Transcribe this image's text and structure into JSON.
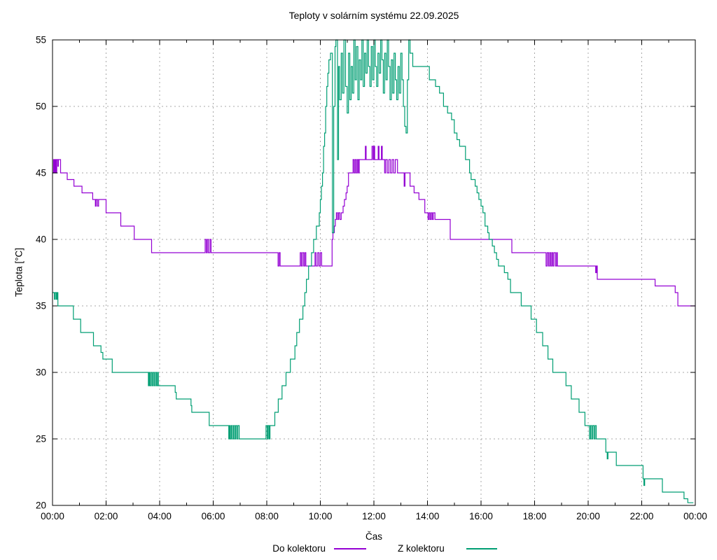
{
  "title": "Teploty v solárním systému 22.09.2025",
  "axes": {
    "x_label": "Čas",
    "y_label": "Teplota [°C]",
    "x_tick_labels": [
      "00:00",
      "02:00",
      "04:00",
      "06:00",
      "08:00",
      "10:00",
      "12:00",
      "14:00",
      "16:00",
      "18:00",
      "20:00",
      "22:00",
      "00:00"
    ],
    "y_tick_labels": [
      "20",
      "25",
      "30",
      "35",
      "40",
      "45",
      "50",
      "55"
    ]
  },
  "legend": {
    "position": "bottom-center",
    "items": [
      {
        "label": "Do kolektoru",
        "color": "#9400d3"
      },
      {
        "label": "Z kolektoru",
        "color": "#009e73"
      }
    ]
  },
  "chart_data": {
    "type": "line",
    "style": "steps",
    "title": "Teploty v solárním systému 22.09.2025",
    "xlabel": "Čas",
    "ylabel": "Teplota [°C]",
    "x_unit": "hours",
    "xlim": [
      0,
      24
    ],
    "ylim": [
      20,
      55
    ],
    "grid": true,
    "x_major_tick_hours": 2,
    "x_minor_tick_hours": 1,
    "y_major_tick": 5,
    "series": [
      {
        "name": "Do kolektoru",
        "color": "#9400d3",
        "points": [
          [
            0,
            45
          ],
          [
            0.04,
            46
          ],
          [
            0.07,
            45
          ],
          [
            0.1,
            46
          ],
          [
            0.13,
            45
          ],
          [
            0.16,
            46
          ],
          [
            0.2,
            45.5
          ],
          [
            0.22,
            46
          ],
          [
            0.3,
            45
          ],
          [
            0.55,
            44.5
          ],
          [
            0.8,
            44
          ],
          [
            1.1,
            43.5
          ],
          [
            1.5,
            43
          ],
          [
            1.6,
            42.5
          ],
          [
            1.63,
            43
          ],
          [
            1.68,
            42.5
          ],
          [
            1.72,
            43
          ],
          [
            2.0,
            42
          ],
          [
            2.55,
            41
          ],
          [
            3.05,
            40
          ],
          [
            3.7,
            39
          ],
          [
            5.7,
            40
          ],
          [
            5.74,
            39
          ],
          [
            5.78,
            40
          ],
          [
            5.82,
            39
          ],
          [
            5.88,
            40
          ],
          [
            5.92,
            39
          ],
          [
            8.42,
            38
          ],
          [
            8.46,
            39
          ],
          [
            8.5,
            38
          ],
          [
            9.25,
            39
          ],
          [
            9.29,
            38
          ],
          [
            9.33,
            39
          ],
          [
            9.38,
            38
          ],
          [
            9.42,
            39
          ],
          [
            9.46,
            38
          ],
          [
            9.8,
            39
          ],
          [
            9.84,
            38
          ],
          [
            9.9,
            39
          ],
          [
            9.95,
            38
          ],
          [
            10.0,
            39
          ],
          [
            10.05,
            38
          ],
          [
            10.44,
            40
          ],
          [
            10.47,
            40.5
          ],
          [
            10.52,
            41
          ],
          [
            10.56,
            41.5
          ],
          [
            10.6,
            42
          ],
          [
            10.64,
            41.5
          ],
          [
            10.68,
            42
          ],
          [
            10.73,
            41.5
          ],
          [
            10.78,
            42
          ],
          [
            10.85,
            42.5
          ],
          [
            10.9,
            43
          ],
          [
            10.96,
            43.5
          ],
          [
            11.0,
            44
          ],
          [
            11.05,
            45
          ],
          [
            11.22,
            46
          ],
          [
            11.26,
            45
          ],
          [
            11.3,
            46
          ],
          [
            11.34,
            45
          ],
          [
            11.38,
            46
          ],
          [
            11.42,
            45
          ],
          [
            11.45,
            46
          ],
          [
            11.68,
            47
          ],
          [
            11.71,
            46
          ],
          [
            11.93,
            47
          ],
          [
            11.97,
            46
          ],
          [
            12.0,
            47
          ],
          [
            12.03,
            46
          ],
          [
            12.16,
            47
          ],
          [
            12.19,
            46
          ],
          [
            12.28,
            47
          ],
          [
            12.31,
            46
          ],
          [
            12.4,
            45
          ],
          [
            12.44,
            46
          ],
          [
            12.5,
            45
          ],
          [
            12.56,
            46
          ],
          [
            12.62,
            45
          ],
          [
            12.68,
            46
          ],
          [
            12.74,
            45
          ],
          [
            12.8,
            46
          ],
          [
            12.88,
            45
          ],
          [
            13.13,
            44
          ],
          [
            13.16,
            45
          ],
          [
            13.35,
            44
          ],
          [
            13.5,
            43.5
          ],
          [
            13.68,
            43
          ],
          [
            13.9,
            42
          ],
          [
            14.02,
            41.5
          ],
          [
            14.06,
            42
          ],
          [
            14.1,
            41.5
          ],
          [
            14.14,
            42
          ],
          [
            14.18,
            41.5
          ],
          [
            14.22,
            42
          ],
          [
            14.28,
            41.5
          ],
          [
            14.85,
            40
          ],
          [
            17.15,
            39
          ],
          [
            18.43,
            38
          ],
          [
            18.47,
            39
          ],
          [
            18.52,
            38
          ],
          [
            18.56,
            39
          ],
          [
            18.6,
            38
          ],
          [
            18.64,
            39
          ],
          [
            18.68,
            38
          ],
          [
            18.72,
            39
          ],
          [
            18.78,
            38
          ],
          [
            18.82,
            39
          ],
          [
            18.85,
            38
          ],
          [
            20.28,
            37.5
          ],
          [
            20.31,
            38
          ],
          [
            20.34,
            37
          ],
          [
            22.5,
            36.5
          ],
          [
            23.25,
            36
          ],
          [
            23.35,
            35
          ],
          [
            24,
            35
          ]
        ]
      },
      {
        "name": "Z kolektoru",
        "color": "#009e73",
        "points": [
          [
            0,
            36
          ],
          [
            0.07,
            35.5
          ],
          [
            0.1,
            36
          ],
          [
            0.14,
            35.5
          ],
          [
            0.17,
            36
          ],
          [
            0.2,
            35
          ],
          [
            0.78,
            34
          ],
          [
            1.05,
            33
          ],
          [
            1.53,
            32
          ],
          [
            1.81,
            31.5
          ],
          [
            1.88,
            31
          ],
          [
            2.23,
            30
          ],
          [
            3.58,
            29
          ],
          [
            3.61,
            30
          ],
          [
            3.64,
            29
          ],
          [
            3.68,
            30
          ],
          [
            3.72,
            29
          ],
          [
            3.76,
            30
          ],
          [
            3.8,
            29
          ],
          [
            3.84,
            30
          ],
          [
            3.88,
            29
          ],
          [
            3.92,
            30
          ],
          [
            3.95,
            29
          ],
          [
            4.58,
            28.5
          ],
          [
            4.62,
            28
          ],
          [
            5.17,
            27.5
          ],
          [
            5.2,
            27
          ],
          [
            5.85,
            26
          ],
          [
            6.58,
            25
          ],
          [
            6.61,
            26
          ],
          [
            6.64,
            25
          ],
          [
            6.68,
            26
          ],
          [
            6.72,
            25
          ],
          [
            6.76,
            26
          ],
          [
            6.8,
            25
          ],
          [
            6.84,
            26
          ],
          [
            6.88,
            25
          ],
          [
            6.92,
            26
          ],
          [
            6.97,
            25
          ],
          [
            7.97,
            26
          ],
          [
            8.02,
            25
          ],
          [
            8.05,
            26
          ],
          [
            8.09,
            25
          ],
          [
            8.12,
            26
          ],
          [
            8.3,
            27
          ],
          [
            8.43,
            28
          ],
          [
            8.57,
            29
          ],
          [
            8.72,
            30
          ],
          [
            8.88,
            31
          ],
          [
            9.05,
            32
          ],
          [
            9.12,
            33
          ],
          [
            9.22,
            34
          ],
          [
            9.35,
            35
          ],
          [
            9.42,
            36
          ],
          [
            9.48,
            37
          ],
          [
            9.56,
            38
          ],
          [
            9.67,
            39
          ],
          [
            9.75,
            40
          ],
          [
            9.85,
            41
          ],
          [
            9.96,
            42
          ],
          [
            10.0,
            43
          ],
          [
            10.04,
            44
          ],
          [
            10.08,
            45
          ],
          [
            10.12,
            47
          ],
          [
            10.16,
            48
          ],
          [
            10.2,
            50
          ],
          [
            10.24,
            51.5
          ],
          [
            10.28,
            52.5
          ],
          [
            10.32,
            53.5
          ],
          [
            10.38,
            54
          ],
          [
            10.45,
            40.5
          ],
          [
            10.5,
            50
          ],
          [
            10.55,
            54.5
          ],
          [
            10.58,
            55
          ],
          [
            10.64,
            46
          ],
          [
            10.68,
            53
          ],
          [
            10.72,
            50.5
          ],
          [
            10.78,
            54
          ],
          [
            10.83,
            51
          ],
          [
            10.88,
            55
          ],
          [
            10.94,
            51.5
          ],
          [
            11.0,
            49.5
          ],
          [
            11.05,
            54
          ],
          [
            11.1,
            50.5
          ],
          [
            11.15,
            53
          ],
          [
            11.2,
            51
          ],
          [
            11.25,
            55
          ],
          [
            11.3,
            52
          ],
          [
            11.35,
            54.5
          ],
          [
            11.4,
            50.5
          ],
          [
            11.45,
            53.5
          ],
          [
            11.5,
            52
          ],
          [
            11.55,
            55
          ],
          [
            11.6,
            51.5
          ],
          [
            11.65,
            54
          ],
          [
            11.7,
            52.5
          ],
          [
            11.75,
            55
          ],
          [
            11.8,
            53
          ],
          [
            11.85,
            51.5
          ],
          [
            11.9,
            54.5
          ],
          [
            11.95,
            52
          ],
          [
            12.0,
            55
          ],
          [
            12.05,
            53
          ],
          [
            12.1,
            51.5
          ],
          [
            12.15,
            54
          ],
          [
            12.2,
            52.5
          ],
          [
            12.25,
            55
          ],
          [
            12.3,
            53.5
          ],
          [
            12.35,
            51
          ],
          [
            12.4,
            54
          ],
          [
            12.45,
            52
          ],
          [
            12.5,
            55
          ],
          [
            12.55,
            53
          ],
          [
            12.6,
            50.5
          ],
          [
            12.65,
            53.5
          ],
          [
            12.7,
            51
          ],
          [
            12.75,
            54
          ],
          [
            12.8,
            52
          ],
          [
            12.85,
            50.5
          ],
          [
            12.9,
            53
          ],
          [
            12.95,
            51
          ],
          [
            13.0,
            54
          ],
          [
            13.05,
            52
          ],
          [
            13.1,
            50
          ],
          [
            13.15,
            48.5
          ],
          [
            13.2,
            48
          ],
          [
            13.25,
            52
          ],
          [
            13.3,
            55
          ],
          [
            13.35,
            54
          ],
          [
            13.45,
            53
          ],
          [
            14.07,
            52
          ],
          [
            14.3,
            51.5
          ],
          [
            14.45,
            51
          ],
          [
            14.6,
            50
          ],
          [
            14.75,
            49.5
          ],
          [
            14.9,
            49
          ],
          [
            15.0,
            48
          ],
          [
            15.1,
            47.5
          ],
          [
            15.2,
            47
          ],
          [
            15.42,
            46
          ],
          [
            15.57,
            45
          ],
          [
            15.63,
            44.5
          ],
          [
            15.78,
            44
          ],
          [
            15.85,
            43.5
          ],
          [
            15.92,
            43
          ],
          [
            16.0,
            42.5
          ],
          [
            16.07,
            42
          ],
          [
            16.15,
            41
          ],
          [
            16.25,
            40.5
          ],
          [
            16.3,
            40
          ],
          [
            16.42,
            39.5
          ],
          [
            16.5,
            39
          ],
          [
            16.58,
            38.5
          ],
          [
            16.65,
            38
          ],
          [
            16.87,
            37.5
          ],
          [
            17.0,
            37
          ],
          [
            17.1,
            36
          ],
          [
            17.5,
            35
          ],
          [
            17.87,
            34
          ],
          [
            18.07,
            33
          ],
          [
            18.3,
            32
          ],
          [
            18.5,
            31
          ],
          [
            18.68,
            30
          ],
          [
            19.17,
            29
          ],
          [
            19.37,
            28
          ],
          [
            19.66,
            27
          ],
          [
            19.88,
            26
          ],
          [
            20.05,
            25
          ],
          [
            20.09,
            26
          ],
          [
            20.13,
            25
          ],
          [
            20.17,
            26
          ],
          [
            20.22,
            25
          ],
          [
            20.26,
            26
          ],
          [
            20.3,
            25
          ],
          [
            20.66,
            24
          ],
          [
            20.71,
            23.5
          ],
          [
            20.74,
            24
          ],
          [
            21.05,
            23
          ],
          [
            22.05,
            22
          ],
          [
            22.08,
            21.5
          ],
          [
            22.11,
            22
          ],
          [
            22.77,
            21
          ],
          [
            23.58,
            20.5
          ],
          [
            23.72,
            20.2
          ],
          [
            23.93,
            20.2
          ]
        ]
      }
    ]
  }
}
